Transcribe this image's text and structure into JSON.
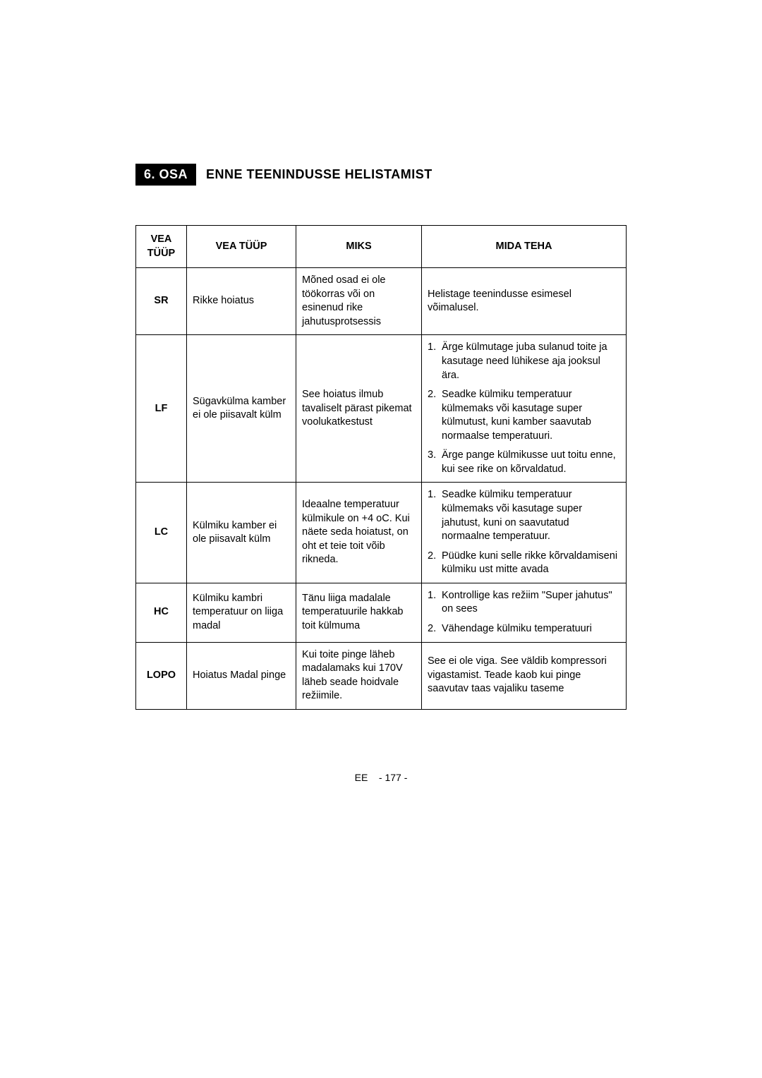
{
  "section": {
    "badge": "6. OSA",
    "title": "ENNE TEENINDUSSE HELISTAMIST"
  },
  "table": {
    "headers": {
      "code": "VEA TÜÜP",
      "type": "VEA TÜÜP",
      "why": "MIKS",
      "action": "MIDA TEHA"
    },
    "rows": [
      {
        "code": "SR",
        "type": "Rikke hoiatus",
        "why": "Mõned osad ei ole töökorras või on esinenud rike jahutusprotsessis",
        "action_plain": "Helistage teenindusse esimesel võimalusel."
      },
      {
        "code": "LF",
        "type": "Sügavkülma kamber ei ole piisavalt külm",
        "why": "See hoiatus ilmub tavaliselt pärast pikemat voolukatkestust",
        "actions": [
          "Ärge külmutage juba sulanud toite ja kasutage need lühikese aja jooksul ära.",
          "Seadke külmiku temperatuur külmemaks või kasutage super külmutust, kuni kamber saavutab normaalse temperatuuri.",
          "Ärge pange külmikusse uut toitu enne, kui see rike on kõrvaldatud."
        ]
      },
      {
        "code": "LC",
        "type": "Külmiku kamber ei ole piisavalt külm",
        "why": "Ideaalne temperatuur külmikule on  +4 oC. Kui näete seda hoiatust, on oht et teie toit võib rikneda.",
        "actions": [
          "Seadke külmiku temperatuur külmemaks või kasutage super jahutust, kuni on saavutatud normaalne temperatuur.",
          "Püüdke kuni selle rikke kõrvaldamiseni külmiku ust mitte avada"
        ]
      },
      {
        "code": "HC",
        "type": "Külmiku kambri temperatuur on liiga madal",
        "why": "Tänu liiga madalale temperatuurile hakkab toit külmuma",
        "actions": [
          "Kontrollige kas režiim \"Super jahutus\" on sees",
          " Vähendage külmiku temperatuuri"
        ]
      },
      {
        "code": "LOPO",
        "type": "Hoiatus Madal pinge",
        "why": "Kui toite pinge läheb madalamaks kui 170V läheb seade hoidvale režiimile.",
        "action_plain": "See ei ole viga. See väldib kompressori vigastamist. Teade kaob kui pinge saavutav taas vajaliku taseme"
      }
    ]
  },
  "footer": {
    "lang": "EE",
    "page": "- 177 -"
  }
}
